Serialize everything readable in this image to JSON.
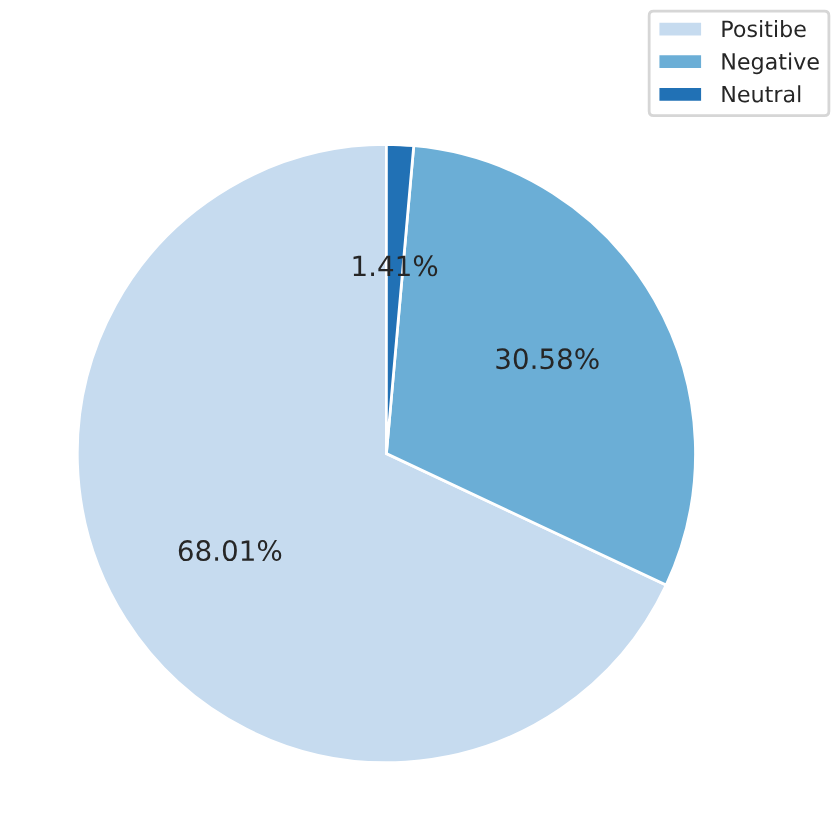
{
  "chart_data": {
    "type": "pie",
    "categories": [
      "Positibe",
      "Negative",
      "Neutral"
    ],
    "values": [
      68.01,
      30.58,
      1.41
    ],
    "value_labels": [
      "68.01%",
      "30.58%",
      "1.41%"
    ],
    "colors": [
      "#c6dbef",
      "#6baed6",
      "#2171b5"
    ],
    "legend": "top right"
  }
}
